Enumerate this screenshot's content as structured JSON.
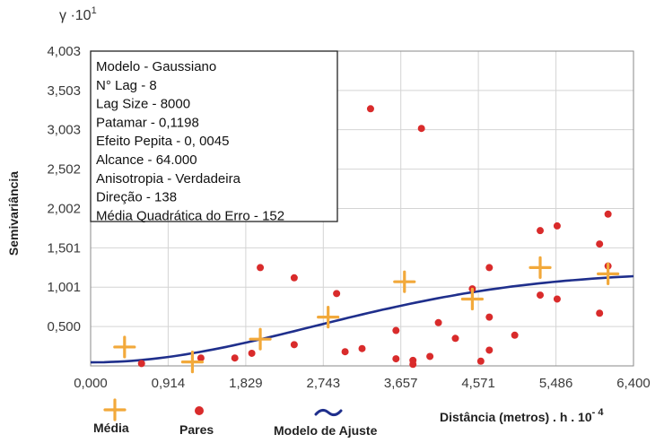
{
  "chart_data": {
    "type": "scatter",
    "y_unit_label": "γ ·10",
    "y_unit_exponent": "1",
    "ylabel": "Semivariância",
    "xlabel": "Distância (metros) . h . 10",
    "xlabel_exponent": "- 4",
    "xlim": [
      0.0,
      6.4
    ],
    "ylim": [
      0.0,
      4.003
    ],
    "x_ticks": [
      0.0,
      0.914,
      1.829,
      2.743,
      3.657,
      4.571,
      5.486,
      6.4
    ],
    "x_tick_labels": [
      "0,000",
      "0,914",
      "1,829",
      "2,743",
      "3,657",
      "4,571",
      "5,486",
      "6,400"
    ],
    "y_ticks": [
      0.5,
      1.001,
      1.501,
      2.002,
      2.502,
      3.003,
      3.503,
      4.003
    ],
    "y_tick_labels": [
      "0,500",
      "1,001",
      "1,501",
      "2,002",
      "2,502",
      "3,003",
      "3,503",
      "4,003"
    ],
    "grid": true,
    "info_box": [
      "Modelo - Gaussiano",
      "N° Lag - 8",
      "Lag Size - 8000",
      "Patamar - 0,1198",
      "Efeito Pepita - 0, 0045",
      "Alcance - 64.000",
      "Anisotropia - Verdadeira",
      "Direção - 138",
      "Média Quadrática do Erro - 152"
    ],
    "series": [
      {
        "name": "Média",
        "marker": "plus",
        "color": "#f2a93b",
        "points": [
          [
            0.4,
            0.24
          ],
          [
            1.2,
            0.05
          ],
          [
            2.0,
            0.34
          ],
          [
            2.8,
            0.62
          ],
          [
            3.7,
            1.07
          ],
          [
            4.5,
            0.85
          ],
          [
            5.3,
            1.25
          ],
          [
            6.1,
            1.17
          ]
        ]
      },
      {
        "name": "Pares",
        "marker": "dot",
        "color": "#d92b2b",
        "points": [
          [
            0.6,
            0.03
          ],
          [
            1.3,
            0.1
          ],
          [
            1.7,
            0.1
          ],
          [
            1.9,
            0.16
          ],
          [
            2.0,
            1.25
          ],
          [
            2.4,
            1.12
          ],
          [
            2.4,
            0.27
          ],
          [
            2.9,
            0.92
          ],
          [
            3.0,
            0.18
          ],
          [
            3.2,
            0.22
          ],
          [
            3.3,
            3.27
          ],
          [
            3.6,
            0.45
          ],
          [
            3.6,
            0.09
          ],
          [
            3.8,
            0.02
          ],
          [
            3.8,
            0.07
          ],
          [
            3.9,
            3.02
          ],
          [
            4.0,
            0.12
          ],
          [
            4.1,
            0.55
          ],
          [
            4.3,
            0.35
          ],
          [
            4.5,
            0.98
          ],
          [
            4.6,
            0.06
          ],
          [
            4.7,
            0.2
          ],
          [
            4.7,
            0.62
          ],
          [
            4.7,
            1.25
          ],
          [
            5.0,
            0.39
          ],
          [
            5.3,
            1.72
          ],
          [
            5.3,
            0.9
          ],
          [
            5.5,
            1.78
          ],
          [
            5.5,
            0.85
          ],
          [
            6.0,
            1.55
          ],
          [
            6.0,
            0.67
          ],
          [
            6.1,
            1.27
          ],
          [
            6.1,
            1.93
          ]
        ]
      },
      {
        "name": "Modelo de Ajuste",
        "marker": "line",
        "color": "#1f2f8c",
        "model": "gaussian",
        "nugget": 0.045,
        "sill": 1.198,
        "range": 6.4
      }
    ]
  }
}
